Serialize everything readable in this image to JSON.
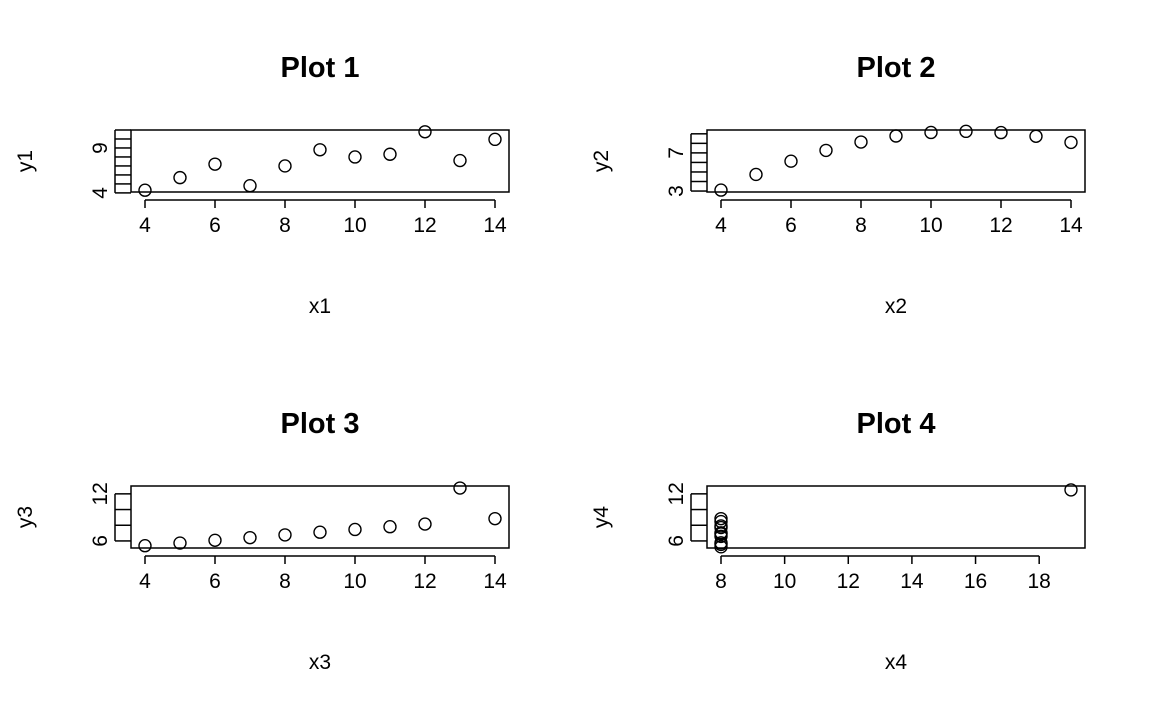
{
  "chart_data": [
    {
      "type": "scatter",
      "title": "Plot 1",
      "xlabel": "x1",
      "ylabel": "y1",
      "x": [
        4,
        5,
        6,
        7,
        8,
        9,
        10,
        11,
        12,
        13,
        14
      ],
      "y": [
        4.3,
        5.7,
        7.2,
        4.8,
        7.0,
        8.8,
        8.0,
        8.3,
        10.8,
        7.6,
        9.96
      ],
      "xlim": [
        3.6,
        14.4
      ],
      "ylim": [
        4.1,
        11.0
      ],
      "xticks": [
        4,
        6,
        8,
        10,
        12,
        14
      ],
      "yticks": [
        4,
        5,
        6,
        7,
        8,
        9,
        10,
        11
      ],
      "ytick_labels": [
        "4",
        "",
        "",
        "",
        "",
        "9",
        "",
        ""
      ]
    },
    {
      "type": "scatter",
      "title": "Plot 2",
      "xlabel": "x2",
      "ylabel": "y2",
      "x": [
        4,
        5,
        6,
        7,
        8,
        9,
        10,
        11,
        12,
        13,
        14
      ],
      "y": [
        3.1,
        4.74,
        6.13,
        7.26,
        8.14,
        8.77,
        9.14,
        9.26,
        9.13,
        8.74,
        8.1
      ],
      "xlim": [
        3.6,
        14.4
      ],
      "ylim": [
        2.9,
        9.4
      ],
      "xticks": [
        4,
        6,
        8,
        10,
        12,
        14
      ],
      "yticks": [
        3,
        4,
        5,
        6,
        7,
        8,
        9
      ],
      "ytick_labels": [
        "3",
        "",
        "",
        "",
        "7",
        "",
        ""
      ]
    },
    {
      "type": "scatter",
      "title": "Plot 3",
      "xlabel": "x3",
      "ylabel": "y3",
      "x": [
        4,
        5,
        6,
        7,
        8,
        9,
        10,
        11,
        12,
        13,
        14
      ],
      "y": [
        5.39,
        5.73,
        6.08,
        6.42,
        6.77,
        7.11,
        7.46,
        7.81,
        8.15,
        12.74,
        8.84
      ],
      "xlim": [
        3.6,
        14.4
      ],
      "ylim": [
        5.1,
        13.0
      ],
      "xticks": [
        4,
        6,
        8,
        10,
        12,
        14
      ],
      "yticks": [
        6,
        8,
        10,
        12
      ],
      "ytick_labels": [
        "6",
        "",
        "",
        "12"
      ]
    },
    {
      "type": "scatter",
      "title": "Plot 4",
      "xlabel": "x4",
      "ylabel": "y4",
      "x": [
        8,
        8,
        8,
        8,
        8,
        8,
        8,
        19,
        8,
        8,
        8
      ],
      "y": [
        6.58,
        5.76,
        7.71,
        8.84,
        8.47,
        7.04,
        5.25,
        12.5,
        5.56,
        7.91,
        6.89
      ],
      "xlim": [
        7.56,
        19.44
      ],
      "ylim": [
        5.1,
        13.0
      ],
      "xticks": [
        8,
        10,
        12,
        14,
        16,
        18
      ],
      "yticks": [
        6,
        8,
        10,
        12
      ],
      "ytick_labels": [
        "6",
        "",
        "",
        "12"
      ]
    }
  ]
}
